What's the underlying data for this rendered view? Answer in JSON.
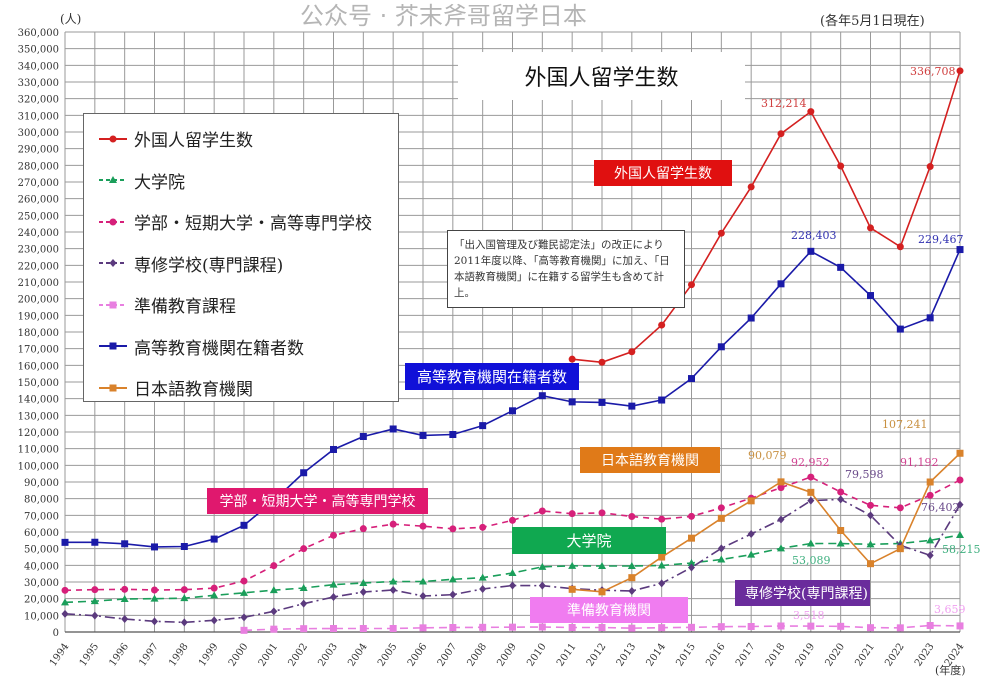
{
  "chart_data": {
    "type": "line",
    "title": "外国人留学生数",
    "subtitle": "(各年5月1日現在)",
    "ylabel": "(人)",
    "xlabel": "(年度)",
    "ylim": [
      0,
      360000
    ],
    "ytick_step": 10000,
    "grid": true,
    "legend_placement": "top-left",
    "x": [
      1994,
      1995,
      1996,
      1997,
      1998,
      1999,
      2000,
      2001,
      2002,
      2003,
      2004,
      2005,
      2006,
      2007,
      2008,
      2009,
      2010,
      2011,
      2012,
      2013,
      2014,
      2015,
      2016,
      2017,
      2018,
      2019,
      2020,
      2021,
      2022,
      2023,
      2024
    ],
    "series": [
      {
        "name": "外国人留学生数",
        "color": "#d42020",
        "dash": "",
        "marker": "circle",
        "values": [
          null,
          null,
          null,
          null,
          null,
          null,
          null,
          null,
          null,
          null,
          null,
          null,
          null,
          null,
          null,
          null,
          null,
          163697,
          161848,
          168145,
          184155,
          208379,
          239287,
          267042,
          298980,
          312214,
          279597,
          242444,
          231146,
          279274,
          336708
        ]
      },
      {
        "name": "大学院",
        "color": "#1a9e5a",
        "dash": "8,5",
        "marker": "triangle",
        "values": [
          17800,
          18500,
          19800,
          20000,
          20300,
          22000,
          23500,
          25100,
          26400,
          28400,
          29400,
          30300,
          30300,
          31600,
          32600,
          35400,
          39100,
          39700,
          39600,
          39600,
          39900,
          41400,
          43500,
          46400,
          50200,
          53089,
          53100,
          52600,
          53100,
          55000,
          58215
        ]
      },
      {
        "name": "学部・短期大学・高等専門学校",
        "color": "#d6207a",
        "dash": "6,5",
        "marker": "circle",
        "values": [
          25000,
          25400,
          25600,
          25200,
          25400,
          26300,
          30600,
          39800,
          50000,
          58000,
          62000,
          64700,
          63500,
          61900,
          62800,
          67000,
          72600,
          71000,
          71500,
          69300,
          67700,
          69400,
          74500,
          80300,
          86600,
          92952,
          84000,
          76000,
          74500,
          82000,
          91192
        ]
      },
      {
        "name": "専修学校(専門課程)",
        "color": "#5b3a7e",
        "dash": "10,4,2,4",
        "marker": "diamond",
        "values": [
          10900,
          9800,
          7800,
          6400,
          5800,
          7000,
          8800,
          12400,
          17000,
          21000,
          24000,
          25200,
          21600,
          22400,
          25800,
          27900,
          27800,
          26000,
          25100,
          24600,
          29200,
          38700,
          50200,
          58800,
          67500,
          78800,
          79598,
          70000,
          52000,
          46000,
          76402
        ]
      },
      {
        "name": "準備教育課程",
        "color": "#e87fe0",
        "dash": "8,5",
        "marker": "square",
        "values": [
          null,
          null,
          null,
          null,
          null,
          null,
          1000,
          1700,
          2000,
          2100,
          2100,
          2100,
          2500,
          2700,
          2800,
          2900,
          3000,
          2700,
          2700,
          2300,
          2600,
          2800,
          3200,
          3300,
          3600,
          3518,
          3400,
          2600,
          2500,
          3900,
          3659
        ]
      },
      {
        "name": "高等教育機関在籍者数",
        "color": "#1a1aa8",
        "dash": "",
        "marker": "square",
        "values": [
          53787,
          53847,
          52921,
          51047,
          51298,
          55755,
          64011,
          78812,
          95550,
          109508,
          117302,
          121812,
          117927,
          118498,
          123829,
          132720,
          141774,
          138075,
          137756,
          135519,
          139185,
          152062,
          171122,
          188384,
          208901,
          228403,
          218783,
          201877,
          181741,
          188500,
          229467
        ]
      },
      {
        "name": "日本語教育機関",
        "color": "#d9822b",
        "dash": "",
        "marker": "square",
        "values": [
          null,
          null,
          null,
          null,
          null,
          null,
          null,
          null,
          null,
          null,
          null,
          null,
          null,
          null,
          null,
          null,
          null,
          25600,
          24100,
          32600,
          44970,
          56300,
          68200,
          78700,
          90079,
          83800,
          60900,
          41000,
          50000,
          90000,
          107241
        ]
      }
    ],
    "callouts": [
      "外国人留学生数",
      "高等教育機関在籍者数",
      "学部・短期大学・高等専門学校",
      "大学院",
      "日本語教育機関",
      "専修学校(専門課程)",
      "準備教育機関"
    ],
    "note": "「出入国管理及び難民認定法」の改正により2011年度以降、「高等教育機関」に加え、「日本語教育機関」に在籍する留学生も含めて計上。",
    "data_labels": [
      "312,214",
      "336,708",
      "228,403",
      "229,467",
      "90,079",
      "92,952",
      "79,598",
      "91,192",
      "107,241",
      "76,402",
      "53,089",
      "58,215",
      "3,518",
      "3,659"
    ],
    "watermark": "公众号 · 芥末斧哥留学日本"
  }
}
